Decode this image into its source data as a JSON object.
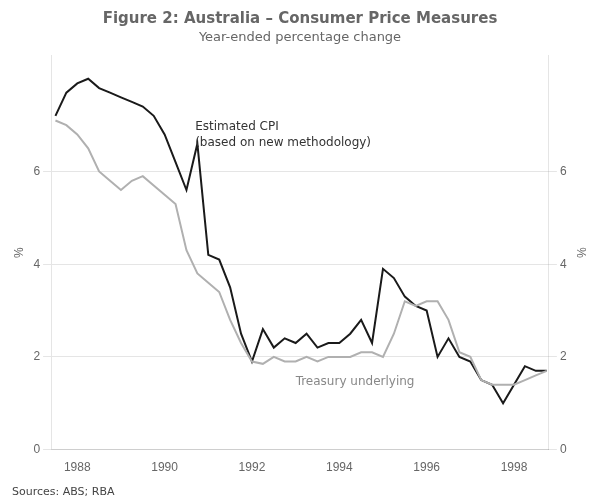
{
  "chart_data": {
    "type": "line",
    "title": "Figure 2: Australia – Consumer Price Measures",
    "subtitle": "Year-ended percentage change",
    "source": "Sources: ABS; RBA",
    "ylabel": "%",
    "y2label": "%",
    "x": [
      1987.5,
      1987.75,
      1988.0,
      1988.25,
      1988.5,
      1988.75,
      1989.0,
      1989.25,
      1989.5,
      1989.75,
      1990.0,
      1990.25,
      1990.5,
      1990.75,
      1991.0,
      1991.25,
      1991.5,
      1991.75,
      1992.0,
      1992.25,
      1992.5,
      1992.75,
      1993.0,
      1993.25,
      1993.5,
      1993.75,
      1994.0,
      1994.25,
      1994.5,
      1994.75,
      1995.0,
      1995.25,
      1995.5,
      1995.75,
      1996.0,
      1996.25,
      1996.5,
      1996.75,
      1997.0,
      1997.25,
      1997.5,
      1997.75,
      1998.0,
      1998.25,
      1998.5,
      1998.75
    ],
    "series": [
      {
        "color": "#b0b0b0",
        "values": [
          7.1,
          7.0,
          6.8,
          6.5,
          6.0,
          5.8,
          5.6,
          5.8,
          5.9,
          5.7,
          5.5,
          5.3,
          4.3,
          3.8,
          3.6,
          3.4,
          2.8,
          2.3,
          1.9,
          1.85,
          2.0,
          1.9,
          1.9,
          2.0,
          1.9,
          2.0,
          2.0,
          2.0,
          2.1,
          2.1,
          2.0,
          2.5,
          3.2,
          3.1,
          3.2,
          3.2,
          2.8,
          2.1,
          2.0,
          1.5,
          1.4,
          1.4,
          1.4,
          1.5,
          1.6,
          1.7
        ]
      },
      {
        "color": "#1a1a1a",
        "values": [
          7.2,
          7.7,
          7.9,
          8.0,
          7.8,
          7.7,
          7.6,
          7.5,
          7.4,
          7.2,
          6.8,
          6.2,
          5.6,
          6.6,
          4.2,
          4.1,
          3.5,
          2.5,
          1.9,
          2.6,
          2.2,
          2.4,
          2.3,
          2.5,
          2.2,
          2.3,
          2.3,
          2.5,
          2.8,
          2.3,
          3.9,
          3.7,
          3.3,
          3.1,
          3.0,
          2.0,
          2.4,
          2.0,
          1.9,
          1.5,
          1.4,
          1.0,
          1.4,
          1.8,
          1.7,
          1.7
        ]
      }
    ],
    "xlim": [
      1987.4,
      1998.8
    ],
    "xticks": [
      1988,
      1990,
      1992,
      1994,
      1996,
      1998
    ],
    "ylim": [
      0,
      8.5
    ],
    "yticks": [
      0,
      2,
      4,
      6
    ],
    "y2lim": [
      0,
      8.5
    ],
    "y2ticks": [
      0,
      2,
      4,
      6
    ],
    "grid": "y",
    "annotations": [
      {
        "text": "Estimated CPI\n(based on new methodology)",
        "x": 1990.7,
        "y": 7.1,
        "color": "#333333"
      },
      {
        "text": "Treasury underlying",
        "x": 1993.0,
        "y": 1.6,
        "color": "#888888"
      }
    ]
  }
}
